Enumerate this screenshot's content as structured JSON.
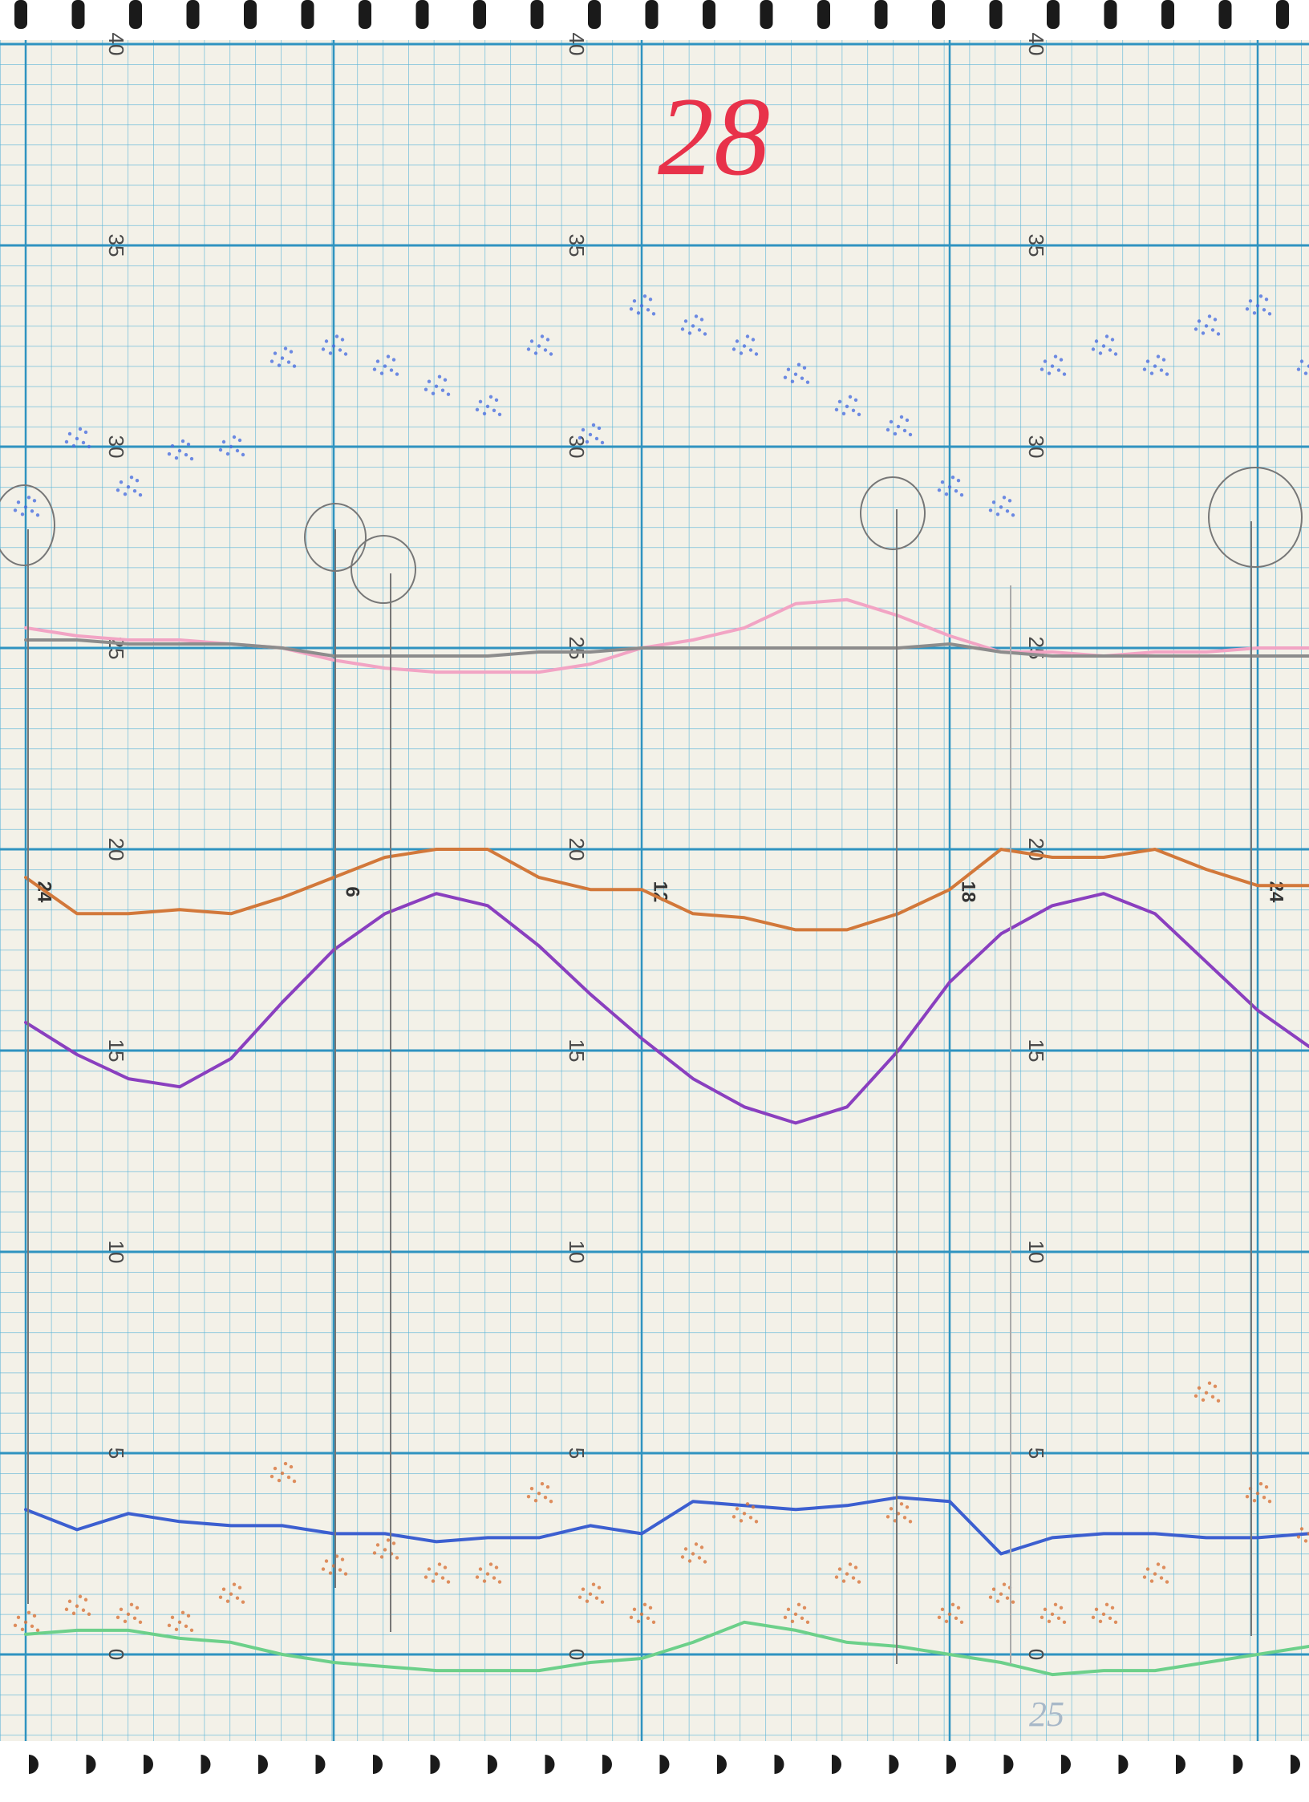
{
  "chart_data": {
    "type": "line",
    "title": "28",
    "note": "25",
    "x": [
      0,
      1,
      2,
      3,
      4,
      5,
      6,
      7,
      8,
      9,
      10,
      11,
      12,
      13,
      14,
      15,
      16,
      17,
      18,
      19,
      20,
      21,
      22,
      23,
      24,
      25
    ],
    "xlim": [
      -0.5,
      25
    ],
    "xticks": [
      {
        "value": 0,
        "label": "24"
      },
      6,
      12,
      18,
      24
    ],
    "ylim": [
      0,
      40
    ],
    "yticks": [
      0,
      5,
      10,
      15,
      20,
      25,
      30,
      35,
      40
    ],
    "grid": true,
    "series": [
      {
        "color": "#4a6fe0",
        "marker": "dots",
        "values": [
          28.5,
          30.2,
          29.0,
          29.9,
          30.0,
          32.2,
          32.5,
          32.0,
          31.5,
          31.0,
          32.5,
          30.3,
          33.5,
          33.0,
          32.5,
          31.8,
          31.0,
          30.5,
          29.0,
          28.5,
          32.0,
          32.5,
          32.0,
          33.0,
          33.5,
          32.0
        ]
      },
      {
        "color": "#f2a4c4",
        "marker": "line",
        "values": [
          25.5,
          25.3,
          25.2,
          25.2,
          25.1,
          25.0,
          24.7,
          24.5,
          24.4,
          24.4,
          24.4,
          24.6,
          25.0,
          25.2,
          25.5,
          26.1,
          26.2,
          25.8,
          25.3,
          24.9,
          24.9,
          24.8,
          24.9,
          24.9,
          25.0,
          25.0
        ]
      },
      {
        "color": "#8c8c8c",
        "marker": "line",
        "values": [
          25.2,
          25.2,
          25.1,
          25.1,
          25.1,
          25.0,
          24.8,
          24.8,
          24.8,
          24.8,
          24.9,
          24.9,
          25.0,
          25.0,
          25.0,
          25.0,
          25.0,
          25.0,
          25.1,
          24.9,
          24.8,
          24.8,
          24.8,
          24.8,
          24.8,
          24.8
        ]
      },
      {
        "color": "#d2783a",
        "marker": "line",
        "values": [
          19.3,
          18.4,
          18.4,
          18.5,
          18.4,
          18.8,
          19.3,
          19.8,
          20.0,
          20.0,
          19.3,
          19.0,
          19.0,
          18.4,
          18.3,
          18.0,
          18.0,
          18.4,
          19.0,
          20.0,
          19.8,
          19.8,
          20.0,
          19.5,
          19.1,
          19.1
        ]
      },
      {
        "color": "#8a3fbf",
        "marker": "line",
        "values": [
          15.7,
          14.9,
          14.3,
          14.1,
          14.8,
          16.2,
          17.5,
          18.4,
          18.9,
          18.6,
          17.6,
          16.4,
          15.3,
          14.3,
          13.6,
          13.2,
          13.6,
          15.0,
          16.7,
          17.9,
          18.6,
          18.9,
          18.4,
          17.2,
          16.0,
          15.1
        ]
      },
      {
        "color": "#3c5fd0",
        "marker": "line",
        "values": [
          3.6,
          3.1,
          3.5,
          3.3,
          3.2,
          3.2,
          3.0,
          3.0,
          2.8,
          2.9,
          2.9,
          3.2,
          3.0,
          3.8,
          3.7,
          3.6,
          3.7,
          3.9,
          3.8,
          2.5,
          2.9,
          3.0,
          3.0,
          2.9,
          2.9,
          3.0
        ]
      },
      {
        "color": "#d8743a",
        "marker": "dots",
        "values": [
          0.8,
          1.2,
          1.0,
          0.8,
          1.5,
          4.5,
          2.2,
          2.6,
          2.0,
          2.0,
          4.0,
          1.5,
          1.0,
          2.5,
          3.5,
          1.0,
          2.0,
          3.5,
          1.0,
          1.5,
          1.0,
          1.0,
          2.0,
          6.5,
          4.0,
          3.0
        ]
      },
      {
        "color": "#6cd08a",
        "marker": "line",
        "values": [
          0.5,
          0.6,
          0.6,
          0.4,
          0.3,
          0.0,
          -0.2,
          -0.3,
          -0.4,
          -0.4,
          -0.4,
          -0.2,
          -0.1,
          0.3,
          0.8,
          0.6,
          0.3,
          0.2,
          0.0,
          -0.2,
          -0.5,
          -0.4,
          -0.4,
          -0.2,
          0.0,
          0.2
        ]
      }
    ]
  }
}
